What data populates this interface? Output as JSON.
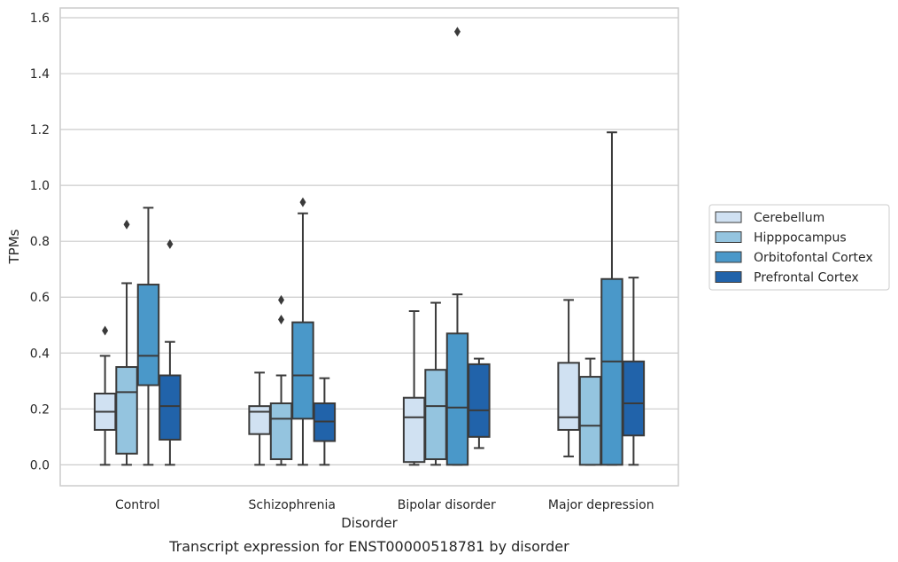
{
  "chart_data": {
    "type": "box",
    "caption": "Transcript expression for ENST00000518781 by disorder",
    "xlabel": "Disorder",
    "ylabel": "TPMs",
    "ylim": [
      -0.075,
      1.635
    ],
    "yticks": [
      "0.0",
      "0.2",
      "0.4",
      "0.6",
      "0.8",
      "1.0",
      "1.2",
      "1.4",
      "1.6"
    ],
    "grid": "horizontal",
    "legend_position": "right",
    "categories": [
      "Control",
      "Schizophrenia",
      "Bipolar disorder",
      "Major depression"
    ],
    "series": [
      {
        "name": "Cerebellum",
        "color": "#d0e1f2",
        "boxes": [
          {
            "whislo": 0.0,
            "q1": 0.125,
            "med": 0.19,
            "q3": 0.255,
            "whishi": 0.39,
            "fliers": [
              0.48
            ]
          },
          {
            "whislo": 0.0,
            "q1": 0.11,
            "med": 0.19,
            "q3": 0.21,
            "whishi": 0.33,
            "fliers": []
          },
          {
            "whislo": 0.0,
            "q1": 0.01,
            "med": 0.17,
            "q3": 0.24,
            "whishi": 0.55,
            "fliers": []
          },
          {
            "whislo": 0.03,
            "q1": 0.125,
            "med": 0.17,
            "q3": 0.365,
            "whishi": 0.59,
            "fliers": []
          }
        ]
      },
      {
        "name": "Hipppocampus",
        "color": "#94c4df",
        "boxes": [
          {
            "whislo": 0.0,
            "q1": 0.04,
            "med": 0.26,
            "q3": 0.35,
            "whishi": 0.65,
            "fliers": [
              0.86
            ]
          },
          {
            "whislo": 0.0,
            "q1": 0.02,
            "med": 0.165,
            "q3": 0.22,
            "whishi": 0.32,
            "fliers": [
              0.52,
              0.59
            ]
          },
          {
            "whislo": 0.0,
            "q1": 0.02,
            "med": 0.21,
            "q3": 0.34,
            "whishi": 0.58,
            "fliers": []
          },
          {
            "whislo": 0.0,
            "q1": 0.0,
            "med": 0.14,
            "q3": 0.315,
            "whishi": 0.38,
            "fliers": []
          }
        ]
      },
      {
        "name": "Orbitofontal Cortex",
        "color": "#4a98c9",
        "boxes": [
          {
            "whislo": 0.0,
            "q1": 0.285,
            "med": 0.39,
            "q3": 0.645,
            "whishi": 0.92,
            "fliers": []
          },
          {
            "whislo": 0.0,
            "q1": 0.165,
            "med": 0.32,
            "q3": 0.51,
            "whishi": 0.9,
            "fliers": [
              0.94
            ]
          },
          {
            "whislo": 0.0,
            "q1": 0.0,
            "med": 0.205,
            "q3": 0.47,
            "whishi": 0.61,
            "fliers": [
              1.55
            ]
          },
          {
            "whislo": 0.0,
            "q1": 0.0,
            "med": 0.37,
            "q3": 0.665,
            "whishi": 1.19,
            "fliers": []
          }
        ]
      },
      {
        "name": "Prefrontal Cortex",
        "color": "#2163aa",
        "boxes": [
          {
            "whislo": 0.0,
            "q1": 0.09,
            "med": 0.21,
            "q3": 0.32,
            "whishi": 0.44,
            "fliers": [
              0.79
            ]
          },
          {
            "whislo": 0.0,
            "q1": 0.085,
            "med": 0.155,
            "q3": 0.22,
            "whishi": 0.31,
            "fliers": []
          },
          {
            "whislo": 0.06,
            "q1": 0.1,
            "med": 0.195,
            "q3": 0.36,
            "whishi": 0.38,
            "fliers": []
          },
          {
            "whislo": 0.0,
            "q1": 0.105,
            "med": 0.22,
            "q3": 0.37,
            "whishi": 0.67,
            "fliers": []
          }
        ]
      }
    ]
  }
}
